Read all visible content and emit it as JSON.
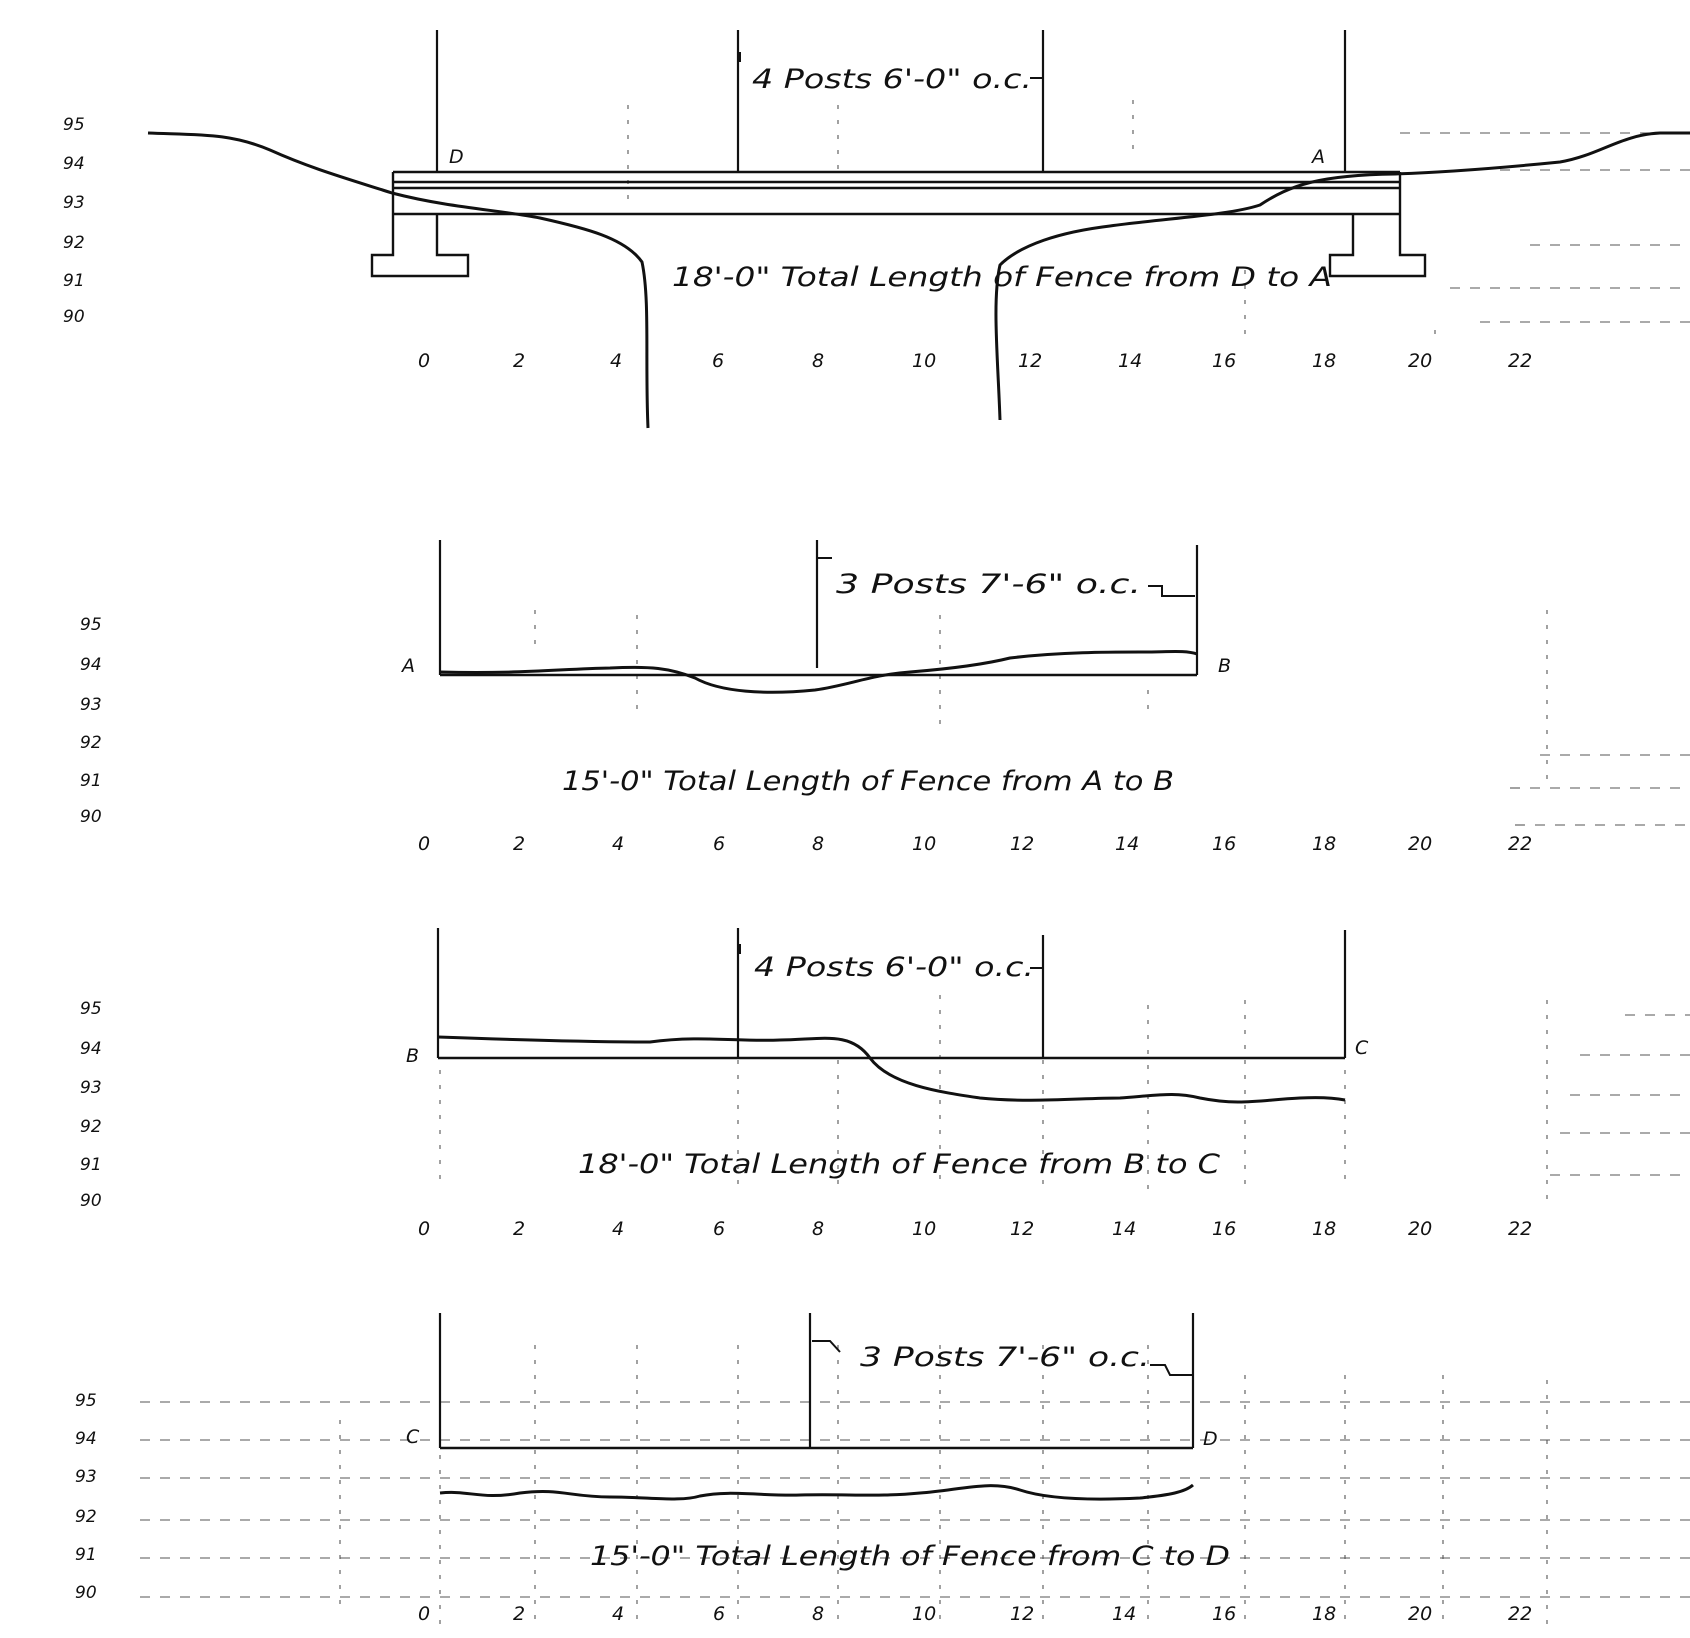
{
  "sections": [
    {
      "id": "D-A",
      "posts_note": "4 Posts 6'-0\" o.c.",
      "total_label": "18'-0\" Total Length of Fence from D to A",
      "start_point": "D",
      "end_point": "A",
      "elevations": [
        "95",
        "94",
        "93",
        "92",
        "91",
        "90"
      ],
      "x_ticks": [
        "0",
        "2",
        "4",
        "6",
        "8",
        "10",
        "12",
        "14",
        "16",
        "18",
        "20",
        "22"
      ]
    },
    {
      "id": "A-B",
      "posts_note": "3 Posts 7'-6\" o.c.",
      "total_label": "15'-0\" Total Length of Fence from A to B",
      "start_point": "A",
      "end_point": "B",
      "elevations": [
        "95",
        "94",
        "93",
        "92",
        "91",
        "90"
      ],
      "x_ticks": [
        "0",
        "2",
        "4",
        "6",
        "8",
        "10",
        "12",
        "14",
        "16",
        "18",
        "20",
        "22"
      ]
    },
    {
      "id": "B-C",
      "posts_note": "4 Posts 6'-0\" o.c.",
      "total_label": "18'-0\" Total Length of Fence from B to C",
      "start_point": "B",
      "end_point": "C",
      "elevations": [
        "95",
        "94",
        "93",
        "92",
        "91",
        "90"
      ],
      "x_ticks": [
        "0",
        "2",
        "4",
        "6",
        "8",
        "10",
        "12",
        "14",
        "16",
        "18",
        "20",
        "22"
      ]
    },
    {
      "id": "C-D",
      "posts_note": "3 Posts 7'-6\" o.c.",
      "total_label": "15'-0\" Total Length of Fence from C to D",
      "start_point": "C",
      "end_point": "D",
      "elevations": [
        "95",
        "94",
        "93",
        "92",
        "91",
        "90"
      ],
      "x_ticks": [
        "0",
        "2",
        "4",
        "6",
        "8",
        "10",
        "12",
        "14",
        "16",
        "18",
        "20",
        "22"
      ]
    }
  ]
}
